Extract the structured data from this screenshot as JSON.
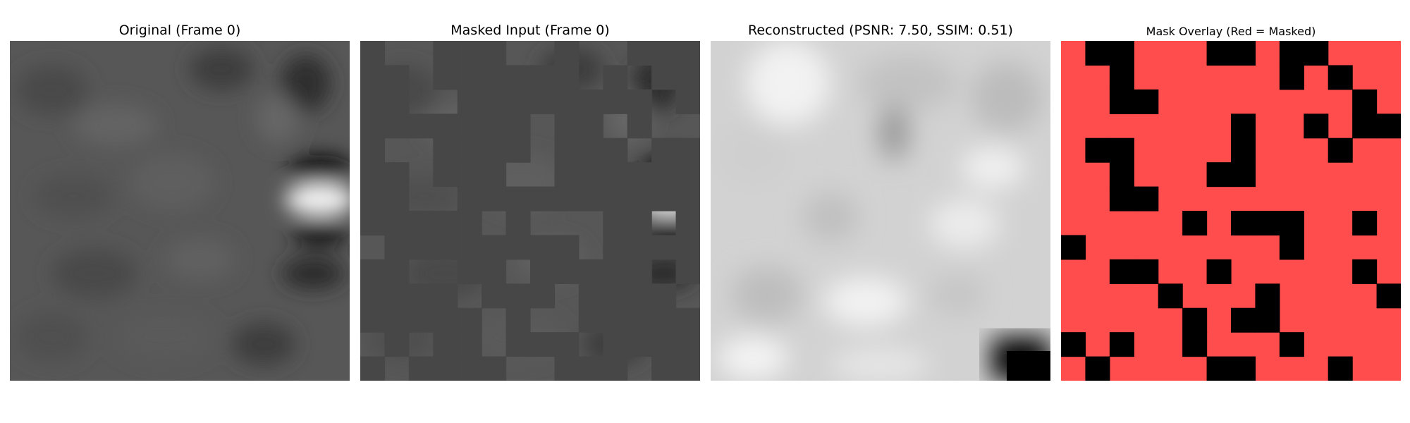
{
  "figure": {
    "panels": [
      {
        "id": "original",
        "title": "Original (Frame 0)"
      },
      {
        "id": "masked",
        "title": "Masked Input (Frame 0)"
      },
      {
        "id": "reconstructed",
        "title": "Reconstructed (PSNR: 7.50, SSIM: 0.51)"
      },
      {
        "id": "mask-overlay",
        "title": "Mask Overlay (Red = Masked)"
      }
    ],
    "colors": {
      "mask_red": "#ff4d4d",
      "mask_visible": "#000000",
      "masked_fill": "#474747"
    },
    "mask_grid": {
      "size": 14,
      "visible_cells": [
        [
          1,
          0
        ],
        [
          2,
          0
        ],
        [
          6,
          0
        ],
        [
          7,
          0
        ],
        [
          9,
          0
        ],
        [
          10,
          0
        ],
        [
          2,
          1
        ],
        [
          9,
          1
        ],
        [
          11,
          1
        ],
        [
          2,
          2
        ],
        [
          3,
          2
        ],
        [
          12,
          2
        ],
        [
          7,
          3
        ],
        [
          10,
          3
        ],
        [
          12,
          3
        ],
        [
          13,
          3
        ],
        [
          1,
          4
        ],
        [
          2,
          4
        ],
        [
          7,
          4
        ],
        [
          11,
          4
        ],
        [
          2,
          5
        ],
        [
          6,
          5
        ],
        [
          7,
          5
        ],
        [
          2,
          6
        ],
        [
          3,
          6
        ],
        [
          5,
          7
        ],
        [
          7,
          7
        ],
        [
          8,
          7
        ],
        [
          9,
          7
        ],
        [
          12,
          7
        ],
        [
          0,
          8
        ],
        [
          9,
          8
        ],
        [
          2,
          9
        ],
        [
          3,
          9
        ],
        [
          6,
          9
        ],
        [
          12,
          9
        ],
        [
          4,
          10
        ],
        [
          8,
          10
        ],
        [
          13,
          10
        ],
        [
          5,
          11
        ],
        [
          7,
          11
        ],
        [
          8,
          11
        ],
        [
          0,
          12
        ],
        [
          2,
          12
        ],
        [
          5,
          12
        ],
        [
          9,
          12
        ],
        [
          1,
          13
        ],
        [
          6,
          13
        ],
        [
          7,
          13
        ],
        [
          11,
          13
        ]
      ]
    }
  }
}
